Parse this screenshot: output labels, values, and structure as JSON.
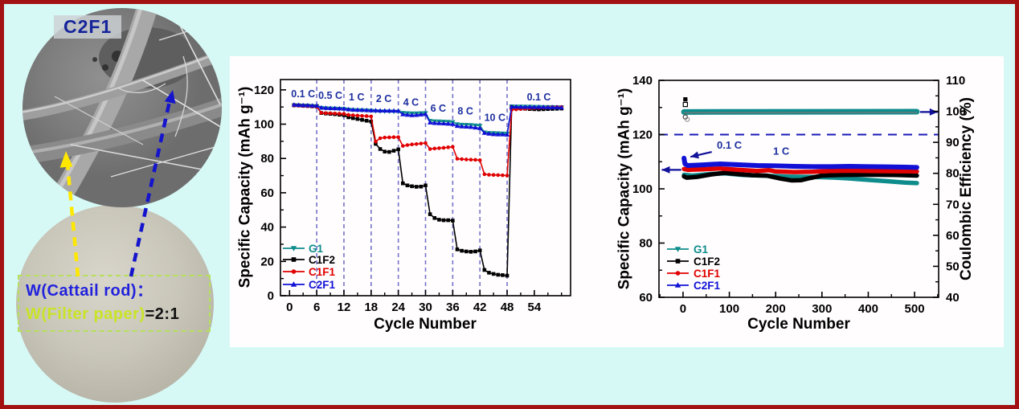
{
  "colors": {
    "background": "#d7f9f6",
    "frame_border": "#a31212",
    "panel": "#ffffff",
    "navy_annotation": "#1c2f9f",
    "dashed_vline": "#7474c8",
    "dashed_hline": "#1a1ab8",
    "series_g1": "#0e8c8c",
    "series_c1f2": "#000000",
    "series_c1f1": "#e00000",
    "series_c2f1": "#1111d6"
  },
  "left_panel": {
    "sem_label": "C2F1",
    "ratio_line1": "W(Cattail rod)：",
    "ratio_line2_green": "W(Filter paper)",
    "ratio_line2_black": "=2:1"
  },
  "chart_data": [
    {
      "type": "line",
      "title": "",
      "xlabel": "Cycle Number",
      "ylabel": "Specific Capacity (mAh g⁻¹)",
      "xlim": [
        -2,
        62
      ],
      "ylim": [
        0,
        126
      ],
      "xticks": [
        0,
        6,
        12,
        18,
        24,
        30,
        36,
        42,
        48,
        54
      ],
      "xminor_step": 3,
      "yticks": [
        0,
        20,
        40,
        60,
        80,
        100,
        120
      ],
      "yminor_step": 10,
      "grid": false,
      "legend_position": "lower-left",
      "vlines": [
        6,
        12,
        18,
        24,
        30,
        36,
        42,
        48
      ],
      "rate_labels": [
        {
          "text": "0.1 C",
          "x": 3.0,
          "y": 115.8
        },
        {
          "text": "0.5 C",
          "x": 9.0,
          "y": 114.8
        },
        {
          "text": "1 C",
          "x": 14.8,
          "y": 113.8
        },
        {
          "text": "2 C",
          "x": 20.8,
          "y": 112.8
        },
        {
          "text": "4 C",
          "x": 26.8,
          "y": 110.8
        },
        {
          "text": "6 C",
          "x": 32.8,
          "y": 107.2
        },
        {
          "text": "8 C",
          "x": 38.8,
          "y": 105.6
        },
        {
          "text": "10 C",
          "x": 45.3,
          "y": 101.8
        },
        {
          "text": "0.1 C",
          "x": 55.0,
          "y": 113.8
        }
      ],
      "series": [
        {
          "name": "G1",
          "color": "#0e8c8c",
          "marker": "triangle-down",
          "x_start": 1,
          "values": [
            111,
            111,
            110.8,
            110.8,
            110.6,
            110.5,
            109.5,
            109.3,
            109.2,
            109.1,
            109,
            108.9,
            108.5,
            108.3,
            108.2,
            108.1,
            108,
            107.9,
            107.6,
            107.5,
            107.4,
            107.4,
            107.3,
            107.3,
            106.6,
            106.4,
            106.3,
            106.3,
            106.4,
            106.5,
            102,
            101.7,
            101.6,
            101.5,
            101.4,
            101.2,
            100,
            99.7,
            99.6,
            99.5,
            99.3,
            99.1,
            95.2,
            94.9,
            94.8,
            94.7,
            94.6,
            94.5,
            110.4,
            110.3,
            110.3,
            110.2,
            110.2,
            110.1,
            110.1,
            110,
            110,
            110,
            109.9,
            109.9
          ]
        },
        {
          "name": "C1F2",
          "color": "#000000",
          "marker": "square",
          "x_start": 1,
          "values": [
            111,
            110.9,
            110.7,
            110.6,
            110.4,
            110.3,
            106.5,
            106.2,
            106,
            105.8,
            105.5,
            105.2,
            104,
            103.5,
            103,
            102.5,
            102,
            101.5,
            88.5,
            85.5,
            84,
            83.8,
            84.5,
            85.3,
            65.5,
            64.3,
            63.8,
            63.5,
            63.6,
            64.3,
            47.5,
            45.3,
            44.3,
            44,
            44,
            43.8,
            27,
            26.2,
            25.8,
            25.6,
            25.8,
            26.4,
            15,
            13.4,
            12.7,
            12.2,
            12,
            11.7,
            109.8,
            109.5,
            109.2,
            109,
            108.8,
            108.7,
            108.6,
            108.7,
            108.8,
            108.9,
            109,
            109.1
          ]
        },
        {
          "name": "C1F1",
          "color": "#e00000",
          "marker": "circle",
          "x_start": 1,
          "values": [
            111,
            110.8,
            110.6,
            110.5,
            110.4,
            110.2,
            106.6,
            106.4,
            106.3,
            106.2,
            106.1,
            106,
            105.4,
            105.2,
            105,
            104.8,
            104.7,
            104.5,
            89.8,
            91.8,
            92.2,
            92.3,
            92.4,
            92.4,
            87.3,
            87.8,
            88.2,
            88.4,
            88.7,
            89,
            85.5,
            85.8,
            86,
            86.2,
            86.5,
            86.8,
            79.8,
            79.6,
            79.4,
            79.3,
            79.2,
            79,
            70.8,
            70.5,
            70.4,
            70.3,
            70.2,
            70,
            108.4,
            108.6,
            108.8,
            109,
            109.2,
            109.4,
            109.5,
            109.6,
            109.8,
            109.9,
            110,
            110
          ]
        },
        {
          "name": "C2F1",
          "color": "#1111d6",
          "marker": "triangle-up",
          "x_start": 1,
          "values": [
            111.3,
            111.1,
            111,
            110.9,
            110.8,
            110.7,
            109.6,
            109.4,
            109.3,
            109.2,
            109.1,
            109,
            108.6,
            108.4,
            108.3,
            108.2,
            108.1,
            108,
            108,
            107.9,
            107.9,
            107.8,
            107.8,
            107.7,
            105.7,
            105.4,
            105.2,
            105.3,
            105.6,
            105.8,
            100.9,
            100.6,
            100.5,
            100.4,
            100.2,
            100,
            98.9,
            98.6,
            98.5,
            98.3,
            98,
            97.6,
            94.9,
            94.4,
            94.1,
            94,
            94,
            93.8,
            110.1,
            110.1,
            110,
            110,
            110,
            109.9,
            109.9,
            109.9,
            109.8,
            109.8,
            109.8,
            109.7
          ]
        }
      ]
    },
    {
      "type": "line",
      "title": "",
      "xlabel": "Cycle Number",
      "ylabel": "Specific Capacity (mAh g⁻¹)",
      "ylabel_right": "Coulombic Efficiency (%)",
      "xlim": [
        -52,
        552
      ],
      "ylim": [
        60,
        140
      ],
      "ylim_right": [
        40,
        110
      ],
      "xticks": [
        0,
        100,
        200,
        300,
        400,
        500
      ],
      "xminor_step": 50,
      "yticks": [
        60,
        80,
        100,
        120,
        140
      ],
      "yminor_step": 10,
      "yticks_right": [
        40,
        50,
        60,
        70,
        80,
        90,
        100,
        110
      ],
      "yminor_right_step": 5,
      "grid": false,
      "legend_position": "lower-left",
      "hline": {
        "y": 120,
        "color": "#1a1ab8"
      },
      "annotations": [
        {
          "text": "0.1 C",
          "x": 100,
          "y": 114.8
        },
        {
          "text": "1 C",
          "x": 212,
          "y": 112.6
        }
      ],
      "arrows": [
        {
          "x1": 62,
          "y1": 113.6,
          "x2": 16,
          "y2": 111.8,
          "axis": "left"
        },
        {
          "x1": -4,
          "y1": 107.0,
          "x2": -46,
          "y2": 107.0,
          "axis": "left"
        },
        {
          "x1": 512,
          "y1": 99.8,
          "x2": 550,
          "y2": 99.8,
          "axis": "right"
        }
      ],
      "series": [
        {
          "name": "G1",
          "color": "#0e8c8c",
          "marker": "triangle-down",
          "width": 5.5,
          "points": [
            [
              2,
              105.2
            ],
            [
              20,
              104.9
            ],
            [
              60,
              105.5
            ],
            [
              90,
              105.7
            ],
            [
              130,
              105.1
            ],
            [
              180,
              104.8
            ],
            [
              230,
              104.5
            ],
            [
              270,
              104.4
            ],
            [
              300,
              104.3
            ],
            [
              330,
              104.1
            ],
            [
              360,
              103.8
            ],
            [
              400,
              103.3
            ],
            [
              440,
              102.8
            ],
            [
              480,
              102.3
            ],
            [
              505,
              102.1
            ]
          ]
        },
        {
          "name": "C1F2",
          "color": "#000000",
          "marker": "square",
          "width": 5.5,
          "points": [
            [
              2,
              104.6
            ],
            [
              8,
              104.1
            ],
            [
              30,
              104.4
            ],
            [
              60,
              105.3
            ],
            [
              90,
              105.9
            ],
            [
              120,
              105.4
            ],
            [
              150,
              105
            ],
            [
              180,
              104.9
            ],
            [
              210,
              103.8
            ],
            [
              235,
              103.1
            ],
            [
              255,
              103.2
            ],
            [
              275,
              104
            ],
            [
              300,
              104.9
            ],
            [
              340,
              105.1
            ],
            [
              380,
              105.2
            ],
            [
              420,
              105.2
            ],
            [
              460,
              105.1
            ],
            [
              505,
              104.9
            ]
          ]
        },
        {
          "name": "C1F1",
          "color": "#e00000",
          "marker": "circle",
          "width": 5.5,
          "points": [
            [
              2,
              107.3
            ],
            [
              10,
              107
            ],
            [
              40,
              107.2
            ],
            [
              80,
              107.5
            ],
            [
              120,
              107
            ],
            [
              160,
              106.6
            ],
            [
              185,
              106.9
            ],
            [
              200,
              106.4
            ],
            [
              240,
              106.2
            ],
            [
              280,
              106.3
            ],
            [
              320,
              106.6
            ],
            [
              360,
              106.7
            ],
            [
              400,
              106.6
            ],
            [
              440,
              106.5
            ],
            [
              480,
              106.5
            ],
            [
              505,
              106.4
            ]
          ]
        },
        {
          "name": "C2F1",
          "color": "#1111d6",
          "marker": "triangle-up",
          "width": 6,
          "points": [
            [
              2,
              111.3
            ],
            [
              4,
              109.2
            ],
            [
              10,
              108.6
            ],
            [
              40,
              108.8
            ],
            [
              80,
              109.2
            ],
            [
              120,
              108.9
            ],
            [
              160,
              108.6
            ],
            [
              200,
              108.5
            ],
            [
              240,
              108.3
            ],
            [
              280,
              108.2
            ],
            [
              320,
              108.2
            ],
            [
              360,
              108.3
            ],
            [
              400,
              108.2
            ],
            [
              440,
              108.1
            ],
            [
              480,
              108
            ],
            [
              505,
              107.9
            ]
          ]
        }
      ],
      "efficiency_series": [
        {
          "name": "Coulombic Efficiency band",
          "color": "#0e8c8c",
          "width": 7,
          "points": [
            [
              2,
              99.8
            ],
            [
              505,
              99.9
            ]
          ]
        },
        {
          "name": "overlapping efficiency trace",
          "color": "#777777",
          "width": 1.4,
          "points": [
            [
              2,
              99.55
            ],
            [
              505,
              99.65
            ]
          ]
        }
      ],
      "scatter": [
        {
          "x": 5,
          "y": 133,
          "style": "square",
          "color": "#000000"
        },
        {
          "x": 5,
          "y": 131.1,
          "style": "square-open",
          "color": "#000000"
        },
        {
          "x": 5,
          "y": 126.5,
          "style": "circle-open",
          "color": "#444444"
        },
        {
          "x": 9,
          "y": 125.6,
          "style": "circle-open",
          "color": "#999999"
        }
      ]
    }
  ]
}
